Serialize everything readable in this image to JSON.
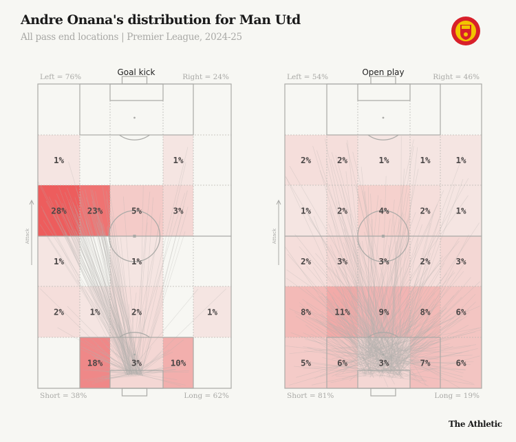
{
  "header": {
    "title": "Andre Onana's distribution for Man Utd",
    "subtitle": "All pass end locations | Premier League, 2024-25",
    "logo": "Manchester United crest",
    "brand": "The Athletic"
  },
  "colors": {
    "heat": "#ec4f50",
    "background": "#f7f7f3",
    "pitch_lines": "#a9a9a6"
  },
  "attack_label": "Attack",
  "chart_data": [
    {
      "type": "heatmap",
      "title": "Goal kick",
      "top_left": "Left = 76%",
      "top_right": "Right = 24%",
      "bottom_left": "Short = 38%",
      "bottom_right": "Long = 62%",
      "rows_top_to_bottom": [
        [
          null,
          null,
          null,
          null,
          null
        ],
        [
          1,
          null,
          null,
          1,
          null
        ],
        [
          28,
          23,
          5,
          3,
          null
        ],
        [
          1,
          null,
          1,
          null,
          null
        ],
        [
          2,
          1,
          2,
          null,
          1
        ],
        [
          null,
          18,
          3,
          10,
          null
        ]
      ]
    },
    {
      "type": "heatmap",
      "title": "Open play",
      "top_left": "Left = 54%",
      "top_right": "Right = 46%",
      "bottom_left": "Short = 81%",
      "bottom_right": "Long = 19%",
      "rows_top_to_bottom": [
        [
          null,
          null,
          null,
          null,
          null
        ],
        [
          2,
          2,
          1,
          1,
          1
        ],
        [
          1,
          2,
          4,
          2,
          1
        ],
        [
          2,
          3,
          3,
          2,
          3
        ],
        [
          8,
          11,
          9,
          8,
          6
        ],
        [
          5,
          6,
          3,
          7,
          6
        ]
      ]
    }
  ]
}
